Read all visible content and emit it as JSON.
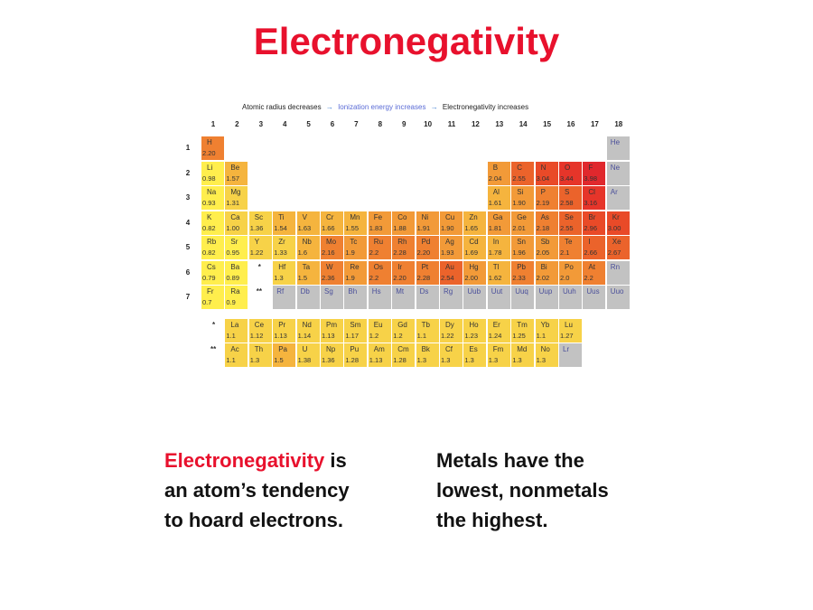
{
  "title": "Electronegativity",
  "legend": {
    "atomic_radius": "Atomic radius decreases",
    "ionization": "Ionization energy increases",
    "electronegativity": "Electronegativity increases",
    "arrow": "→"
  },
  "group_labels": [
    "1",
    "2",
    "3",
    "4",
    "5",
    "6",
    "7",
    "8",
    "9",
    "10",
    "11",
    "12",
    "13",
    "14",
    "15",
    "16",
    "17",
    "18"
  ],
  "period_labels": [
    "1",
    "2",
    "3",
    "4",
    "5",
    "6",
    "7"
  ],
  "markers": {
    "lanthanide": "*",
    "actinide": "**"
  },
  "colors": {
    "title": "#e8112d",
    "gray": "#c2c2c2",
    "noble_symbol": "#4a4f9a"
  },
  "elements": [
    {
      "s": "H",
      "en": "2.20",
      "g": 1,
      "p": 1
    },
    {
      "s": "He",
      "en": "",
      "g": 18,
      "p": 1
    },
    {
      "s": "Li",
      "en": "0.98",
      "g": 1,
      "p": 2
    },
    {
      "s": "Be",
      "en": "1.57",
      "g": 2,
      "p": 2
    },
    {
      "s": "B",
      "en": "2.04",
      "g": 13,
      "p": 2
    },
    {
      "s": "C",
      "en": "2.55",
      "g": 14,
      "p": 2
    },
    {
      "s": "N",
      "en": "3.04",
      "g": 15,
      "p": 2
    },
    {
      "s": "O",
      "en": "3.44",
      "g": 16,
      "p": 2
    },
    {
      "s": "F",
      "en": "3.98",
      "g": 17,
      "p": 2
    },
    {
      "s": "Ne",
      "en": "",
      "g": 18,
      "p": 2
    },
    {
      "s": "Na",
      "en": "0.93",
      "g": 1,
      "p": 3
    },
    {
      "s": "Mg",
      "en": "1.31",
      "g": 2,
      "p": 3
    },
    {
      "s": "Al",
      "en": "1.61",
      "g": 13,
      "p": 3
    },
    {
      "s": "Si",
      "en": "1.90",
      "g": 14,
      "p": 3
    },
    {
      "s": "P",
      "en": "2.19",
      "g": 15,
      "p": 3
    },
    {
      "s": "S",
      "en": "2.58",
      "g": 16,
      "p": 3
    },
    {
      "s": "Cl",
      "en": "3.16",
      "g": 17,
      "p": 3
    },
    {
      "s": "Ar",
      "en": "",
      "g": 18,
      "p": 3
    },
    {
      "s": "K",
      "en": "0.82",
      "g": 1,
      "p": 4
    },
    {
      "s": "Ca",
      "en": "1.00",
      "g": 2,
      "p": 4
    },
    {
      "s": "Sc",
      "en": "1.36",
      "g": 3,
      "p": 4
    },
    {
      "s": "Ti",
      "en": "1.54",
      "g": 4,
      "p": 4
    },
    {
      "s": "V",
      "en": "1.63",
      "g": 5,
      "p": 4
    },
    {
      "s": "Cr",
      "en": "1.66",
      "g": 6,
      "p": 4
    },
    {
      "s": "Mn",
      "en": "1.55",
      "g": 7,
      "p": 4
    },
    {
      "s": "Fe",
      "en": "1.83",
      "g": 8,
      "p": 4
    },
    {
      "s": "Co",
      "en": "1.88",
      "g": 9,
      "p": 4
    },
    {
      "s": "Ni",
      "en": "1.91",
      "g": 10,
      "p": 4
    },
    {
      "s": "Cu",
      "en": "1.90",
      "g": 11,
      "p": 4
    },
    {
      "s": "Zn",
      "en": "1.65",
      "g": 12,
      "p": 4
    },
    {
      "s": "Ga",
      "en": "1.81",
      "g": 13,
      "p": 4
    },
    {
      "s": "Ge",
      "en": "2.01",
      "g": 14,
      "p": 4
    },
    {
      "s": "As",
      "en": "2.18",
      "g": 15,
      "p": 4
    },
    {
      "s": "Se",
      "en": "2.55",
      "g": 16,
      "p": 4
    },
    {
      "s": "Br",
      "en": "2.96",
      "g": 17,
      "p": 4
    },
    {
      "s": "Kr",
      "en": "3.00",
      "g": 18,
      "p": 4
    },
    {
      "s": "Rb",
      "en": "0.82",
      "g": 1,
      "p": 5
    },
    {
      "s": "Sr",
      "en": "0.95",
      "g": 2,
      "p": 5
    },
    {
      "s": "Y",
      "en": "1.22",
      "g": 3,
      "p": 5
    },
    {
      "s": "Zr",
      "en": "1.33",
      "g": 4,
      "p": 5
    },
    {
      "s": "Nb",
      "en": "1.6",
      "g": 5,
      "p": 5
    },
    {
      "s": "Mo",
      "en": "2.16",
      "g": 6,
      "p": 5
    },
    {
      "s": "Tc",
      "en": "1.9",
      "g": 7,
      "p": 5
    },
    {
      "s": "Ru",
      "en": "2.2",
      "g": 8,
      "p": 5
    },
    {
      "s": "Rh",
      "en": "2.28",
      "g": 9,
      "p": 5
    },
    {
      "s": "Pd",
      "en": "2.20",
      "g": 10,
      "p": 5
    },
    {
      "s": "Ag",
      "en": "1.93",
      "g": 11,
      "p": 5
    },
    {
      "s": "Cd",
      "en": "1.69",
      "g": 12,
      "p": 5
    },
    {
      "s": "In",
      "en": "1.78",
      "g": 13,
      "p": 5
    },
    {
      "s": "Sn",
      "en": "1.96",
      "g": 14,
      "p": 5
    },
    {
      "s": "Sb",
      "en": "2.05",
      "g": 15,
      "p": 5
    },
    {
      "s": "Te",
      "en": "2.1",
      "g": 16,
      "p": 5
    },
    {
      "s": "I",
      "en": "2.66",
      "g": 17,
      "p": 5
    },
    {
      "s": "Xe",
      "en": "2.67",
      "g": 18,
      "p": 5
    },
    {
      "s": "Cs",
      "en": "0.79",
      "g": 1,
      "p": 6
    },
    {
      "s": "Ba",
      "en": "0.89",
      "g": 2,
      "p": 6
    },
    {
      "s": "Hf",
      "en": "1.3",
      "g": 4,
      "p": 6
    },
    {
      "s": "Ta",
      "en": "1.5",
      "g": 5,
      "p": 6
    },
    {
      "s": "W",
      "en": "2.36",
      "g": 6,
      "p": 6
    },
    {
      "s": "Re",
      "en": "1.9",
      "g": 7,
      "p": 6
    },
    {
      "s": "Os",
      "en": "2.2",
      "g": 8,
      "p": 6
    },
    {
      "s": "Ir",
      "en": "2.20",
      "g": 9,
      "p": 6
    },
    {
      "s": "Pt",
      "en": "2.28",
      "g": 10,
      "p": 6
    },
    {
      "s": "Au",
      "en": "2.54",
      "g": 11,
      "p": 6
    },
    {
      "s": "Hg",
      "en": "2.00",
      "g": 12,
      "p": 6
    },
    {
      "s": "Tl",
      "en": "1.62",
      "g": 13,
      "p": 6
    },
    {
      "s": "Pb",
      "en": "2.33",
      "g": 14,
      "p": 6
    },
    {
      "s": "Bi",
      "en": "2.02",
      "g": 15,
      "p": 6
    },
    {
      "s": "Po",
      "en": "2.0",
      "g": 16,
      "p": 6
    },
    {
      "s": "At",
      "en": "2.2",
      "g": 17,
      "p": 6
    },
    {
      "s": "Rn",
      "en": "",
      "g": 18,
      "p": 6
    },
    {
      "s": "Fr",
      "en": "0.7",
      "g": 1,
      "p": 7
    },
    {
      "s": "Ra",
      "en": "0.9",
      "g": 2,
      "p": 7
    },
    {
      "s": "Rf",
      "en": "",
      "g": 4,
      "p": 7
    },
    {
      "s": "Db",
      "en": "",
      "g": 5,
      "p": 7
    },
    {
      "s": "Sg",
      "en": "",
      "g": 6,
      "p": 7
    },
    {
      "s": "Bh",
      "en": "",
      "g": 7,
      "p": 7
    },
    {
      "s": "Hs",
      "en": "",
      "g": 8,
      "p": 7
    },
    {
      "s": "Mt",
      "en": "",
      "g": 9,
      "p": 7
    },
    {
      "s": "Ds",
      "en": "",
      "g": 10,
      "p": 7
    },
    {
      "s": "Rg",
      "en": "",
      "g": 11,
      "p": 7
    },
    {
      "s": "Uub",
      "en": "",
      "g": 12,
      "p": 7
    },
    {
      "s": "Uut",
      "en": "",
      "g": 13,
      "p": 7
    },
    {
      "s": "Uuq",
      "en": "",
      "g": 14,
      "p": 7
    },
    {
      "s": "Uup",
      "en": "",
      "g": 15,
      "p": 7
    },
    {
      "s": "Uuh",
      "en": "",
      "g": 16,
      "p": 7
    },
    {
      "s": "Uus",
      "en": "",
      "g": 17,
      "p": 7
    },
    {
      "s": "Uuo",
      "en": "",
      "g": 18,
      "p": 7
    }
  ],
  "lanthanides": [
    {
      "s": "La",
      "en": "1.1"
    },
    {
      "s": "Ce",
      "en": "1.12"
    },
    {
      "s": "Pr",
      "en": "1.13"
    },
    {
      "s": "Nd",
      "en": "1.14"
    },
    {
      "s": "Pm",
      "en": "1.13"
    },
    {
      "s": "Sm",
      "en": "1.17"
    },
    {
      "s": "Eu",
      "en": "1.2"
    },
    {
      "s": "Gd",
      "en": "1.2"
    },
    {
      "s": "Tb",
      "en": "1.1"
    },
    {
      "s": "Dy",
      "en": "1.22"
    },
    {
      "s": "Ho",
      "en": "1.23"
    },
    {
      "s": "Er",
      "en": "1.24"
    },
    {
      "s": "Tm",
      "en": "1.25"
    },
    {
      "s": "Yb",
      "en": "1.1"
    },
    {
      "s": "Lu",
      "en": "1.27"
    }
  ],
  "actinides": [
    {
      "s": "Ac",
      "en": "1.1"
    },
    {
      "s": "Th",
      "en": "1.3"
    },
    {
      "s": "Pa",
      "en": "1.5"
    },
    {
      "s": "U",
      "en": "1.38"
    },
    {
      "s": "Np",
      "en": "1.36"
    },
    {
      "s": "Pu",
      "en": "1.28"
    },
    {
      "s": "Am",
      "en": "1.13"
    },
    {
      "s": "Cm",
      "en": "1.28"
    },
    {
      "s": "Bk",
      "en": "1.3"
    },
    {
      "s": "Cf",
      "en": "1.3"
    },
    {
      "s": "Es",
      "en": "1.3"
    },
    {
      "s": "Fm",
      "en": "1.3"
    },
    {
      "s": "Md",
      "en": "1.3"
    },
    {
      "s": "No",
      "en": "1.3"
    },
    {
      "s": "Lr",
      "en": ""
    }
  ],
  "text_left": {
    "highlight": "Electronegativity",
    "rest1": " is",
    "line2": "an atom’s tendency",
    "line3": "to hoard electrons."
  },
  "text_right": {
    "line1": "Metals have the",
    "line2": "lowest, nonmetals",
    "line3": "the highest."
  }
}
